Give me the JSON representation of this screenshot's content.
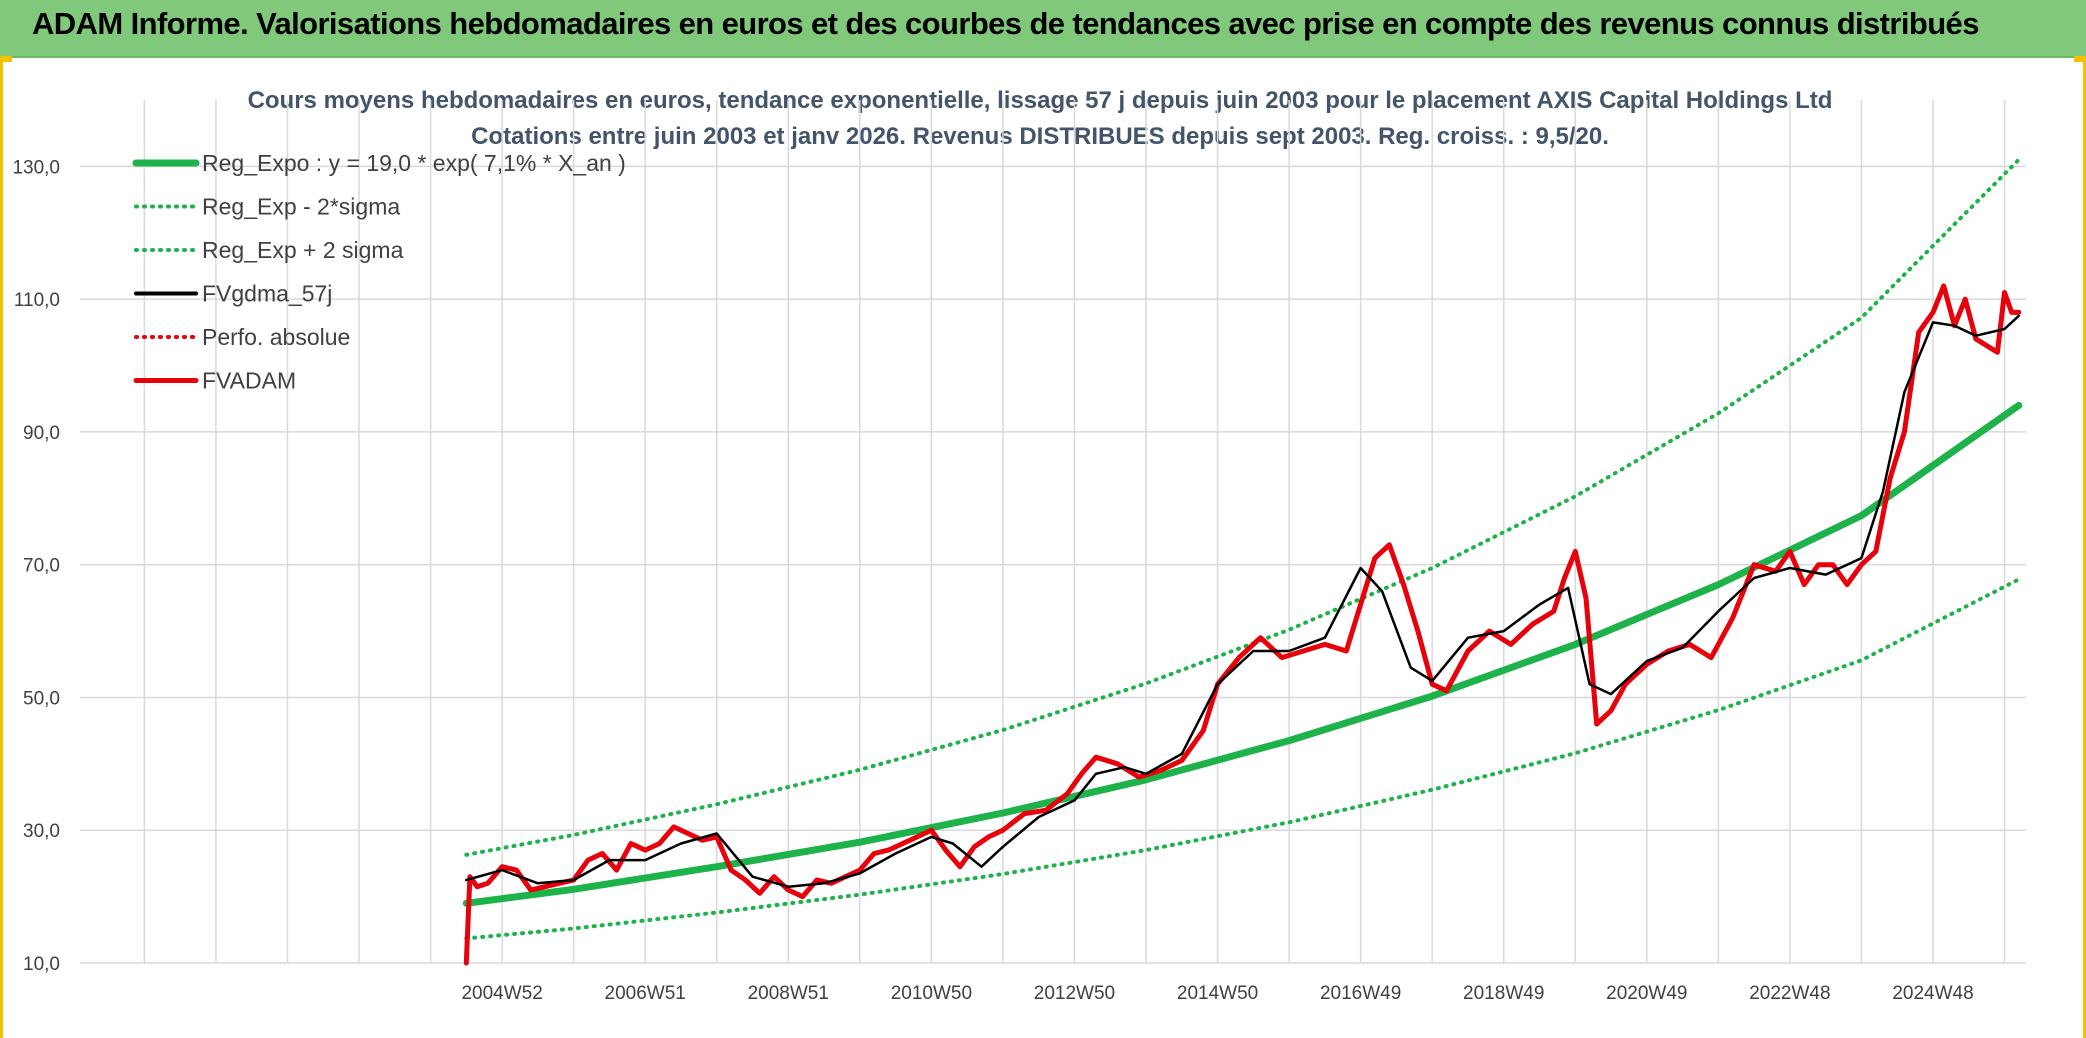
{
  "header": {
    "title": "ADAM Informe. Valorisations hebdomadaires en euros et des courbes de tendances avec prise en compte des revenus connus distribués"
  },
  "colors": {
    "header_bg": "#80c97a",
    "accent_yellow": "#f2c200",
    "trend_green": "#1db34a",
    "price_red": "#e8000b",
    "smooth_black": "#000000",
    "grid": "#d9d9d9",
    "title_text": "#44546a"
  },
  "chart_data": {
    "type": "line",
    "title": "Cours moyens hebdomadaires en euros, tendance exponentielle, lissage 57 j depuis juin 2003 pour le placement AXIS Capital Holdings Ltd",
    "subtitle": "Cotations entre juin 2003 et janv 2026. Revenus DISTRIBUES depuis sept 2003. Reg. croiss. : 9,5/20.",
    "xlabel": "",
    "ylabel": "",
    "ylim": [
      10,
      140
    ],
    "yticks": [
      10,
      30,
      50,
      70,
      90,
      110,
      130
    ],
    "ytick_labels": [
      "10,0",
      "30,0",
      "50,0",
      "70,0",
      "90,0",
      "110,0",
      "130,0"
    ],
    "xlim": [
      1999.1,
      2026.3
    ],
    "xticks": [
      2005.0,
      2007.0,
      2009.0,
      2011.0,
      2013.0,
      2015.0,
      2017.0,
      2019.0,
      2021.0,
      2023.0,
      2025.0
    ],
    "xtick_labels": [
      "2004W52",
      "2006W51",
      "2008W51",
      "2010W50",
      "2012W50",
      "2014W50",
      "2016W49",
      "2018W49",
      "2020W49",
      "2022W48",
      "2024W48"
    ],
    "legend_position": "top-left",
    "grid": true,
    "series": [
      {
        "name": "Reg_Expo : y = 19,0 * exp( 7,1% *  X_an )",
        "style": "solid-thick",
        "color": "#1db34a",
        "x": [
          2004.5,
          2006.0,
          2008.0,
          2010.0,
          2012.0,
          2014.0,
          2016.0,
          2018.0,
          2020.0,
          2022.0,
          2024.0,
          2026.2
        ],
        "y": [
          19.0,
          21.1,
          24.5,
          28.2,
          32.6,
          37.6,
          43.5,
          50.2,
          58.0,
          67.0,
          77.4,
          94.0
        ]
      },
      {
        "name": "Reg_Exp - 2*sigma",
        "style": "dotted",
        "color": "#1db34a",
        "x": [
          2004.5,
          2006.0,
          2008.0,
          2010.0,
          2012.0,
          2014.0,
          2016.0,
          2018.0,
          2020.0,
          2022.0,
          2024.0,
          2026.2
        ],
        "y": [
          13.7,
          15.2,
          17.6,
          20.3,
          23.4,
          27.0,
          31.2,
          36.1,
          41.6,
          48.1,
          55.6,
          67.8
        ]
      },
      {
        "name": "Reg_Exp + 2 sigma",
        "style": "dotted",
        "color": "#1db34a",
        "x": [
          2004.5,
          2006.0,
          2008.0,
          2010.0,
          2012.0,
          2014.0,
          2016.0,
          2018.0,
          2020.0,
          2022.0,
          2024.0,
          2026.2
        ],
        "y": [
          26.3,
          29.3,
          33.9,
          39.1,
          45.1,
          52.1,
          60.2,
          69.5,
          80.3,
          92.8,
          107.2,
          131.0
        ]
      },
      {
        "name": "FVgdma_57j",
        "style": "solid",
        "color": "#000000",
        "x": [
          2004.5,
          2005.0,
          2005.5,
          2006.0,
          2006.5,
          2007.0,
          2007.5,
          2008.0,
          2008.5,
          2009.0,
          2009.5,
          2010.0,
          2010.5,
          2011.0,
          2011.3,
          2011.7,
          2012.0,
          2012.5,
          2013.0,
          2013.3,
          2013.7,
          2014.0,
          2014.5,
          2015.0,
          2015.5,
          2016.0,
          2016.5,
          2017.0,
          2017.3,
          2017.7,
          2018.0,
          2018.5,
          2019.0,
          2019.5,
          2019.9,
          2020.2,
          2020.5,
          2021.0,
          2021.5,
          2022.0,
          2022.5,
          2023.0,
          2023.5,
          2024.0,
          2024.3,
          2024.6,
          2025.0,
          2025.3,
          2025.6,
          2026.0,
          2026.2
        ],
        "y": [
          22.5,
          24.0,
          22.0,
          22.5,
          25.5,
          25.5,
          28.0,
          29.5,
          23.0,
          21.5,
          22.0,
          23.5,
          26.5,
          29.0,
          28.0,
          24.5,
          27.5,
          32.0,
          34.5,
          38.5,
          39.5,
          38.5,
          41.5,
          52.0,
          57.0,
          57.0,
          59.0,
          69.5,
          66.0,
          54.5,
          52.5,
          59.0,
          60.0,
          64.0,
          66.5,
          52.0,
          50.5,
          55.5,
          57.5,
          63.0,
          68.0,
          69.5,
          68.5,
          71.0,
          81.0,
          96.0,
          106.5,
          106.0,
          104.5,
          105.5,
          107.5
        ]
      },
      {
        "name": "Perfo. absolue",
        "style": "dotted",
        "color": "#e8000b",
        "x": [],
        "y": []
      },
      {
        "name": "FVADAM",
        "style": "solid-thick",
        "color": "#e8000b",
        "x": [
          2004.5,
          2004.55,
          2004.65,
          2004.8,
          2005.0,
          2005.2,
          2005.4,
          2005.6,
          2005.8,
          2006.0,
          2006.2,
          2006.4,
          2006.6,
          2006.8,
          2007.0,
          2007.2,
          2007.4,
          2007.6,
          2007.8,
          2008.0,
          2008.2,
          2008.4,
          2008.6,
          2008.8,
          2009.0,
          2009.2,
          2009.4,
          2009.6,
          2009.8,
          2010.0,
          2010.2,
          2010.4,
          2010.6,
          2010.8,
          2011.0,
          2011.2,
          2011.4,
          2011.6,
          2011.8,
          2012.0,
          2012.3,
          2012.6,
          2012.9,
          2013.1,
          2013.3,
          2013.6,
          2013.9,
          2014.2,
          2014.5,
          2014.8,
          2015.0,
          2015.3,
          2015.6,
          2015.9,
          2016.2,
          2016.5,
          2016.8,
          2017.0,
          2017.2,
          2017.4,
          2017.6,
          2017.8,
          2018.0,
          2018.2,
          2018.5,
          2018.8,
          2019.1,
          2019.4,
          2019.7,
          2019.85,
          2020.0,
          2020.15,
          2020.3,
          2020.5,
          2020.7,
          2021.0,
          2021.3,
          2021.6,
          2021.9,
          2022.2,
          2022.5,
          2022.8,
          2023.0,
          2023.2,
          2023.4,
          2023.6,
          2023.8,
          2024.0,
          2024.2,
          2024.4,
          2024.6,
          2024.8,
          2025.0,
          2025.15,
          2025.3,
          2025.45,
          2025.6,
          2025.75,
          2025.9,
          2026.0,
          2026.1,
          2026.2
        ],
        "y": [
          10.0,
          23.0,
          21.5,
          22.0,
          24.5,
          24.0,
          21.0,
          21.5,
          22.0,
          22.5,
          25.5,
          26.5,
          24.0,
          28.0,
          27.0,
          28.0,
          30.5,
          29.5,
          28.5,
          29.0,
          24.0,
          22.5,
          20.5,
          23.0,
          21.0,
          20.0,
          22.5,
          22.0,
          23.0,
          24.0,
          26.5,
          27.0,
          28.0,
          29.0,
          30.0,
          27.0,
          24.5,
          27.5,
          29.0,
          30.0,
          32.5,
          33.0,
          35.5,
          38.5,
          41.0,
          40.0,
          38.0,
          39.0,
          40.5,
          45.0,
          52.0,
          56.0,
          59.0,
          56.0,
          57.0,
          58.0,
          57.0,
          64.0,
          71.0,
          73.0,
          67.0,
          60.0,
          52.0,
          51.0,
          57.0,
          60.0,
          58.0,
          61.0,
          63.0,
          68.0,
          72.0,
          65.0,
          46.0,
          48.0,
          52.0,
          55.0,
          57.0,
          58.0,
          56.0,
          62.0,
          70.0,
          69.0,
          72.0,
          67.0,
          70.0,
          70.0,
          67.0,
          70.0,
          72.0,
          83.0,
          90.0,
          105.0,
          108.0,
          112.0,
          106.0,
          110.0,
          104.0,
          103.0,
          102.0,
          111.0,
          108.0,
          108.0
        ]
      }
    ]
  }
}
